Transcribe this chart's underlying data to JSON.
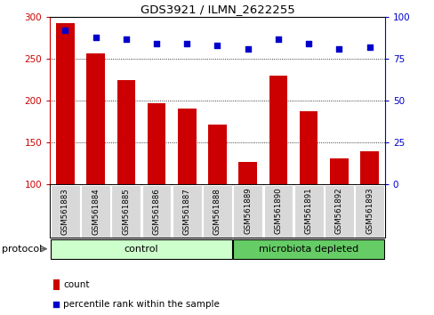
{
  "title": "GDS3921 / ILMN_2622255",
  "categories": [
    "GSM561883",
    "GSM561884",
    "GSM561885",
    "GSM561886",
    "GSM561887",
    "GSM561888",
    "GSM561889",
    "GSM561890",
    "GSM561891",
    "GSM561892",
    "GSM561893"
  ],
  "bar_values": [
    293,
    257,
    225,
    197,
    191,
    171,
    127,
    230,
    188,
    131,
    140
  ],
  "dot_values": [
    92,
    88,
    87,
    84,
    84,
    83,
    81,
    87,
    84,
    81,
    82
  ],
  "ylim_left": [
    100,
    300
  ],
  "ylim_right": [
    0,
    100
  ],
  "yticks_left": [
    100,
    150,
    200,
    250,
    300
  ],
  "yticks_right": [
    0,
    25,
    50,
    75,
    100
  ],
  "bar_color": "#cc0000",
  "dot_color": "#0000cc",
  "control_label": "control",
  "microbiota_label": "microbiota depleted",
  "protocol_label": "protocol",
  "legend_count": "count",
  "legend_percentile": "percentile rank within the sample",
  "control_color": "#ccffcc",
  "microbiota_color": "#66cc66",
  "tick_bg_color": "#d8d8d8",
  "n_control": 6,
  "n_microbiota": 5,
  "grid_yticks": [
    150,
    200,
    250
  ]
}
